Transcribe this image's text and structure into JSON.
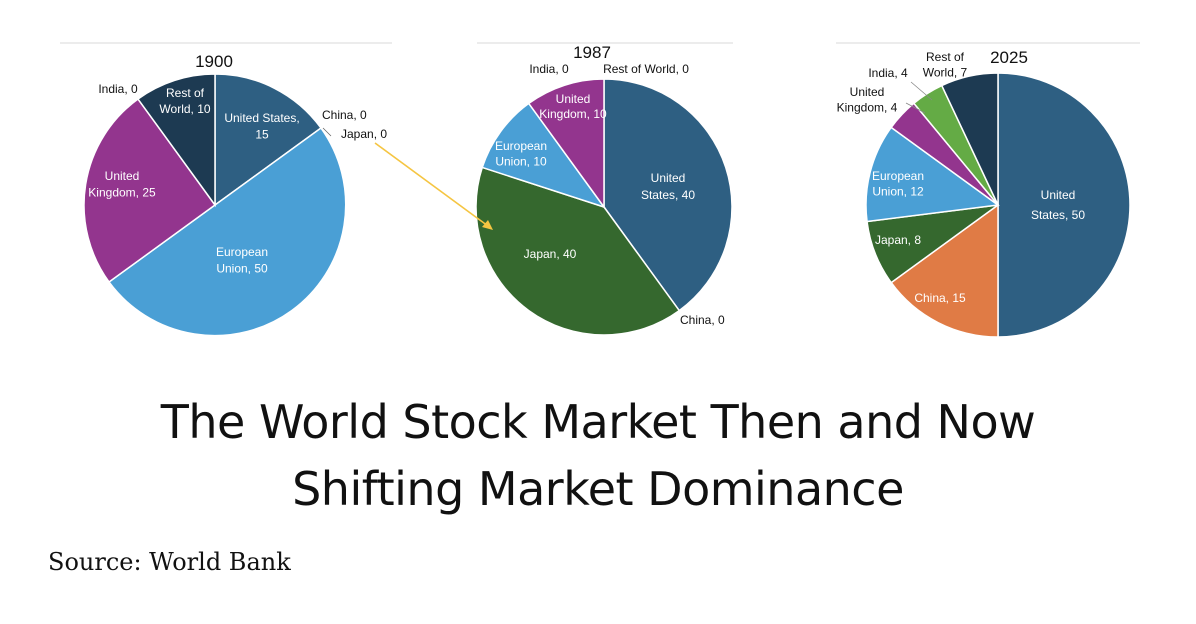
{
  "title": "The World Stock Market Then and Now",
  "subtitle": "Shifting Market Dominance",
  "source": "Source: World Bank",
  "colors": {
    "United States": "#2e5f82",
    "European Union": "#4a9fd5",
    "United Kingdom": "#93358e",
    "Rest of World": "#1d3a52",
    "Japan": "#35682e",
    "China": "#e07b45",
    "India": "#64ab45",
    "arrow": "#f5c542"
  },
  "chart_data": [
    {
      "type": "pie",
      "title": "1900",
      "unit": "%",
      "slices": [
        {
          "label": "United States, 15",
          "name": "United States",
          "value": 15
        },
        {
          "label": "European Union, 50",
          "name": "European Union",
          "value": 50
        },
        {
          "label": "United Kingdom, 25",
          "name": "United Kingdom",
          "value": 25
        },
        {
          "label": "Rest of World, 10",
          "name": "Rest of World",
          "value": 10
        },
        {
          "label": "India, 0",
          "name": "India",
          "value": 0
        },
        {
          "label": "China, 0",
          "name": "China",
          "value": 0
        },
        {
          "label": "Japan, 0",
          "name": "Japan",
          "value": 0
        }
      ]
    },
    {
      "type": "pie",
      "title": "1987",
      "unit": "%",
      "slices": [
        {
          "label": "United States, 40",
          "name": "United States",
          "value": 40
        },
        {
          "label": "Japan, 40",
          "name": "Japan",
          "value": 40
        },
        {
          "label": "European Union, 10",
          "name": "European Union",
          "value": 10
        },
        {
          "label": "United Kingdom, 10",
          "name": "United Kingdom",
          "value": 10
        },
        {
          "label": "India, 0",
          "name": "India",
          "value": 0
        },
        {
          "label": "Rest of World, 0",
          "name": "Rest of World",
          "value": 0
        },
        {
          "label": "China, 0",
          "name": "China",
          "value": 0
        }
      ]
    },
    {
      "type": "pie",
      "title": "2025",
      "unit": "%",
      "slices": [
        {
          "label": "United States, 50",
          "name": "United States",
          "value": 50
        },
        {
          "label": "China, 15",
          "name": "China",
          "value": 15
        },
        {
          "label": "Japan, 8",
          "name": "Japan",
          "value": 8
        },
        {
          "label": "European Union, 12",
          "name": "European Union",
          "value": 12
        },
        {
          "label": "United Kingdom, 4",
          "name": "United Kingdom",
          "value": 4
        },
        {
          "label": "India, 4",
          "name": "India",
          "value": 4
        },
        {
          "label": "Rest of World, 7",
          "name": "Rest of World",
          "value": 7
        }
      ]
    }
  ]
}
